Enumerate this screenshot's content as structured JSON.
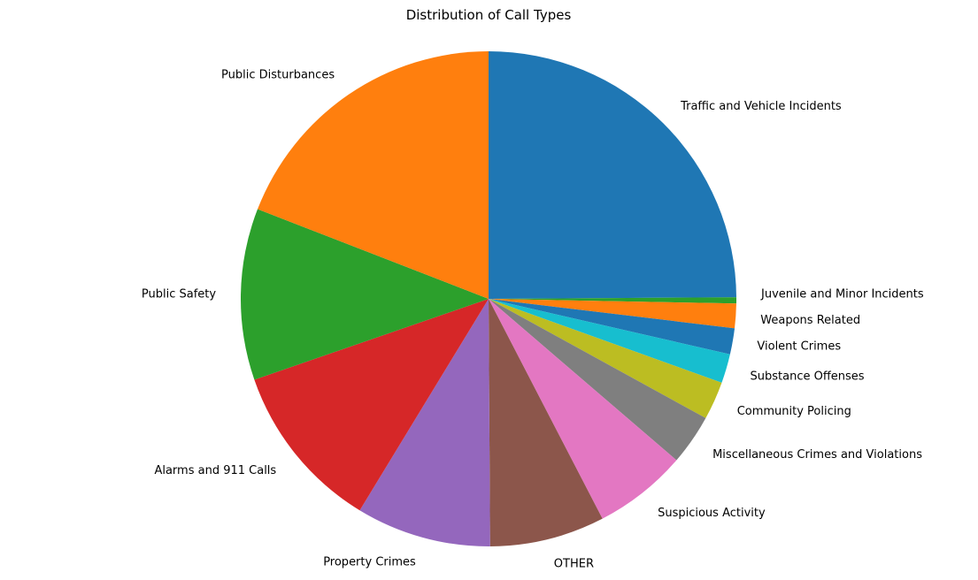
{
  "chart_data": {
    "type": "pie",
    "title": "Distribution of Call Types",
    "start_angle_deg": 90,
    "direction": "clockwise",
    "slices": [
      {
        "label": "Traffic and Vehicle Incidents",
        "value": 24.9,
        "color": "#1f77b4"
      },
      {
        "label": "Juvenile and Minor Incidents",
        "value": 0.4,
        "color": "#2ca02c"
      },
      {
        "label": "Weapons Related",
        "value": 1.6,
        "color": "#ff7f0e"
      },
      {
        "label": "Violent Crimes",
        "value": 1.7,
        "color": "#1f77b4"
      },
      {
        "label": "Substance Offenses",
        "value": 1.9,
        "color": "#17becf"
      },
      {
        "label": "Community Policing",
        "value": 2.5,
        "color": "#bcbd22"
      },
      {
        "label": "Miscellaneous Crimes and Violations",
        "value": 3.3,
        "color": "#7f7f7f"
      },
      {
        "label": "Suspicious Activity",
        "value": 6.1,
        "color": "#e377c2"
      },
      {
        "label": "OTHER",
        "value": 7.5,
        "color": "#8c564b"
      },
      {
        "label": "Property Crimes",
        "value": 8.8,
        "color": "#9467bd"
      },
      {
        "label": "Alarms and 911 Calls",
        "value": 11.0,
        "color": "#d62728"
      },
      {
        "label": "Public Safety",
        "value": 11.2,
        "color": "#2ca02c"
      },
      {
        "label": "Public Disturbances",
        "value": 19.1,
        "color": "#ff7f0e"
      }
    ]
  }
}
